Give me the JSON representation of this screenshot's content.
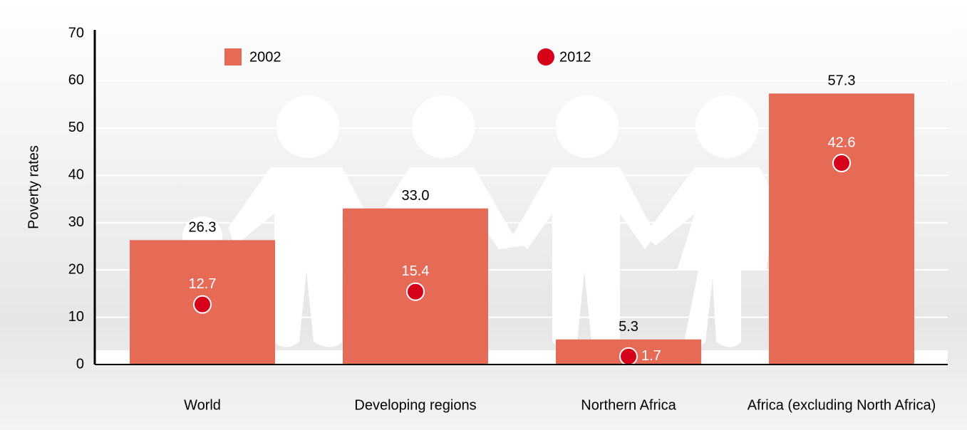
{
  "chart_data": {
    "type": "bar",
    "y_label": "Poverty rates",
    "categories": [
      "World",
      "Developing regions",
      "Northern Africa",
      "Africa (excluding North Africa)"
    ],
    "series": [
      {
        "name": "2002",
        "color": "#e66b57",
        "values": [
          26.3,
          33.0,
          5.3,
          57.3
        ],
        "value_labels": [
          "26.3",
          "33.0",
          "5.3",
          "57.3"
        ]
      },
      {
        "name": "2012",
        "color": "#d7001a",
        "values": [
          12.7,
          15.4,
          1.7,
          42.6
        ],
        "value_labels": [
          "12.7",
          "15.4",
          "1.7",
          "42.6"
        ]
      }
    ],
    "ylim": [
      0,
      70
    ],
    "yticks": [
      0,
      10,
      20,
      30,
      40,
      50,
      60,
      70
    ],
    "grid": true
  }
}
